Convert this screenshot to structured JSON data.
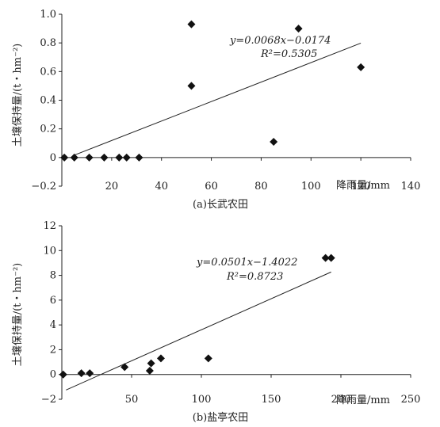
{
  "chart_data": [
    {
      "type": "scatter",
      "caption": "(a)长武农田",
      "xlabel": "降雨量/mm",
      "ylabel": "土壤保持量/(t・hm⁻²)",
      "xlim": [
        0,
        140
      ],
      "ylim": [
        -0.2,
        1.0
      ],
      "xticks": [
        "20",
        "40",
        "60",
        "80",
        "100",
        "120",
        "140"
      ],
      "yticks": [
        "1.0",
        "0.8",
        "0.6",
        "0.4",
        "0.2",
        "0",
        "−0.2"
      ],
      "series": [
        {
          "points": [
            [
              1,
              0
            ],
            [
              5,
              0
            ],
            [
              11,
              0
            ],
            [
              17,
              0
            ],
            [
              23,
              0
            ],
            [
              26,
              0
            ],
            [
              31,
              0
            ],
            [
              52,
              0.93
            ],
            [
              52,
              0.5
            ],
            [
              85,
              0.11
            ],
            [
              95,
              0.9
            ],
            [
              120,
              0.63
            ]
          ],
          "color": "#111111"
        }
      ],
      "trendline": {
        "slope": 0.0068,
        "intercept": -0.0174,
        "x_range": [
          4.9,
          120
        ],
        "equation": "y=0.0068x−0.0174",
        "r2": "R²=0.5305"
      },
      "grid": false
    },
    {
      "type": "scatter",
      "caption": "(b)盐亭农田",
      "xlabel": "降雨量/mm",
      "ylabel": "土壤保持量/(t・hm⁻²)",
      "xlim": [
        0,
        250
      ],
      "ylim": [
        -2,
        12
      ],
      "xticks": [
        "50",
        "100",
        "150",
        "200",
        "250"
      ],
      "yticks": [
        "12",
        "10",
        "8",
        "6",
        "4",
        "2",
        "0",
        "−2"
      ],
      "series": [
        {
          "points": [
            [
              1,
              0
            ],
            [
              14,
              0.1
            ],
            [
              20,
              0.1
            ],
            [
              45,
              0.6
            ],
            [
              63,
              0.3
            ],
            [
              64,
              0.9
            ],
            [
              71,
              1.3
            ],
            [
              105,
              1.3
            ],
            [
              189,
              9.4
            ],
            [
              193,
              9.4
            ]
          ],
          "color": "#111111"
        }
      ],
      "trendline": {
        "slope": 0.0501,
        "intercept": -1.4022,
        "x_range": [
          3,
          193
        ],
        "equation": "y=0.0501x−1.4022",
        "r2": "R²=0.8723"
      },
      "grid": false
    }
  ]
}
